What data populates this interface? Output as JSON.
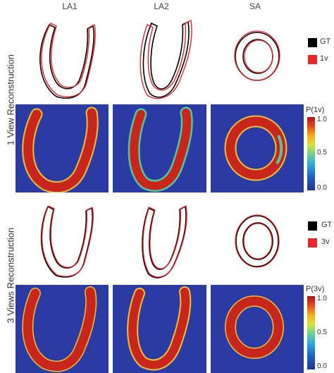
{
  "columns": [
    "LA1",
    "LA2",
    "SA"
  ],
  "rows": [
    {
      "label": "1 View Reconstruction",
      "legend": [
        {
          "label": "GT",
          "color": "#000000"
        },
        {
          "label": "1v",
          "color": "#e8262b"
        }
      ],
      "colorbar": {
        "title": "P(1v)",
        "ticks": [
          "1.0",
          "0.5",
          "0.0"
        ]
      }
    },
    {
      "label": "3 Views Reconstruction",
      "legend": [
        {
          "label": "GT",
          "color": "#000000"
        },
        {
          "label": "3v",
          "color": "#e8262b"
        }
      ],
      "colorbar": {
        "title": "P(3v)",
        "ticks": [
          "1.0",
          "0.5",
          "0.0"
        ]
      }
    }
  ],
  "colors": {
    "background_prob": "#2b3ba3",
    "myocardium": "#c8261b",
    "gt_contour": "#000000",
    "pred_contour": "#e8262b"
  }
}
